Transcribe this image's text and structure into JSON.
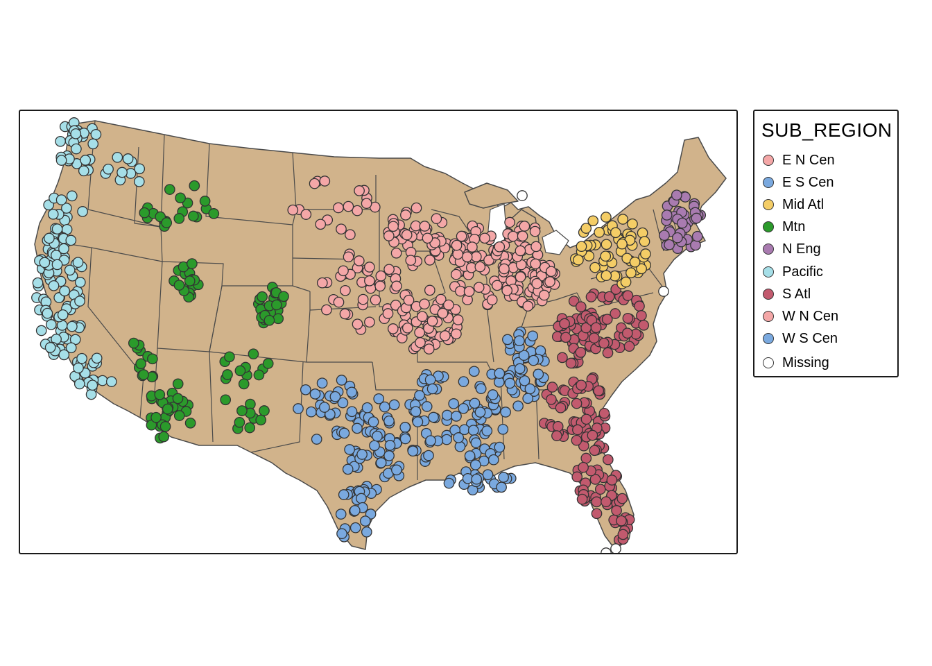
{
  "legend": {
    "title": "SUB_REGION",
    "items": [
      {
        "label": "E N Cen",
        "color": "#f4a7a7"
      },
      {
        "label": "E S Cen",
        "color": "#7aa9df"
      },
      {
        "label": "Mid Atl",
        "color": "#f4cd66"
      },
      {
        "label": "Mtn",
        "color": "#2b9a2b"
      },
      {
        "label": "N Eng",
        "color": "#a97bb0"
      },
      {
        "label": "Pacific",
        "color": "#a6dfe8"
      },
      {
        "label": "S Atl",
        "color": "#c25a6e"
      },
      {
        "label": "W N Cen",
        "color": "#f4a7a7"
      },
      {
        "label": "W S Cen",
        "color": "#7aa9df"
      },
      {
        "label": "Missing",
        "color": "#ffffff"
      }
    ]
  },
  "map": {
    "land_color": "#d1b38b",
    "border_color": "#4a4a4a"
  }
}
